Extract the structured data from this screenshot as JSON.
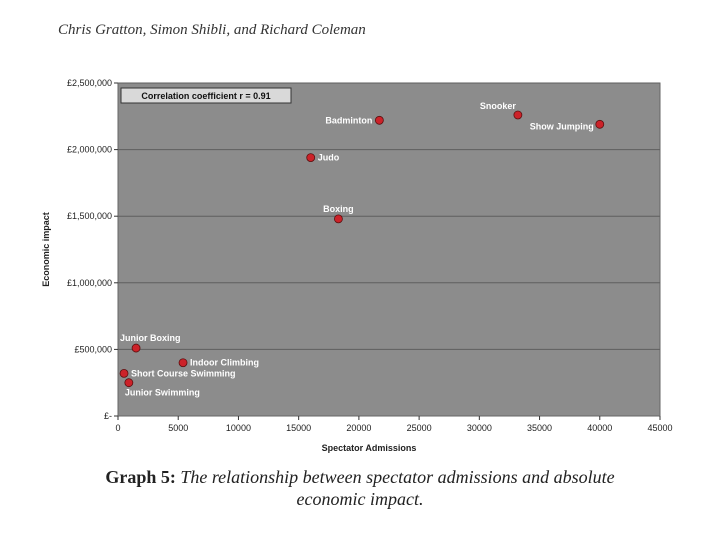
{
  "header": {
    "authors": "Chris Gratton, Simon Shibli, and Richard Coleman"
  },
  "caption": {
    "lead": "Graph 5:",
    "line1": "The relationship between spectator admissions and absolute",
    "line2": "economic impact."
  },
  "chart_data": {
    "type": "scatter",
    "title": "",
    "xlabel": "Spectator Admissions",
    "ylabel": "Economic impact",
    "xlim": [
      0,
      45000
    ],
    "ylim": [
      0,
      2500000
    ],
    "x_ticks": [
      0,
      5000,
      10000,
      15000,
      20000,
      25000,
      30000,
      35000,
      40000,
      45000
    ],
    "x_tick_labels": [
      "0",
      "5000",
      "10000",
      "15000",
      "20000",
      "25000",
      "30000",
      "35000",
      "40000",
      "45000"
    ],
    "y_ticks": [
      0,
      500000,
      1000000,
      1500000,
      2000000,
      2500000
    ],
    "y_tick_labels": [
      "£-",
      "£500,000",
      "£1,000,000",
      "£1,500,000",
      "£2,000,000",
      "£2,500,000"
    ],
    "grid": "horizontal",
    "annotation": "Correlation coefficient r = 0.91",
    "point_color": "#cc2229",
    "plot_background": "#8c8c8c",
    "points": [
      {
        "label": "Badminton",
        "x": 21700,
        "y": 2220000,
        "label_pos": "left"
      },
      {
        "label": "Snooker",
        "x": 33200,
        "y": 2260000,
        "label_pos": "above-left"
      },
      {
        "label": "Show Jumping",
        "x": 40000,
        "y": 2190000,
        "label_pos": "below-left"
      },
      {
        "label": "Judo",
        "x": 16000,
        "y": 1940000,
        "label_pos": "right"
      },
      {
        "label": "Boxing",
        "x": 18300,
        "y": 1480000,
        "label_pos": "above"
      },
      {
        "label": "Junior Boxing",
        "x": 1500,
        "y": 510000,
        "label_pos": "above"
      },
      {
        "label": "Indoor Climbing",
        "x": 5400,
        "y": 400000,
        "label_pos": "right"
      },
      {
        "label": "Short Course Swimming",
        "x": 500,
        "y": 320000,
        "label_pos": "right"
      },
      {
        "label": "Junior Swimming",
        "x": 900,
        "y": 250000,
        "label_pos": "below"
      }
    ]
  }
}
